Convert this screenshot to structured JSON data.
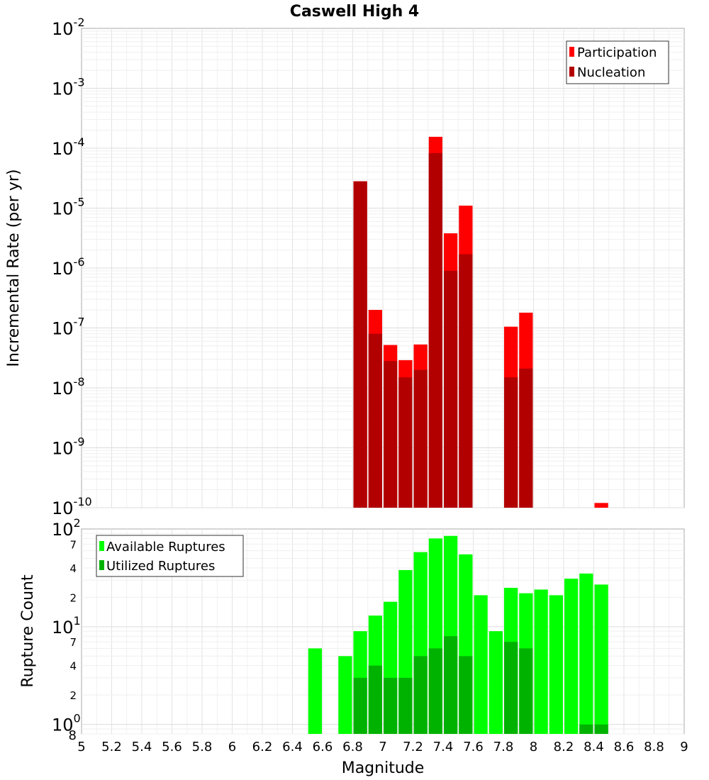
{
  "chart_data": [
    {
      "type": "bar",
      "title": "Caswell High 4",
      "xlabel": "",
      "ylabel": "Incremental Rate (per yr)",
      "yscale": "log",
      "ylim": [
        1e-10,
        0.01
      ],
      "xlim": [
        5,
        9
      ],
      "bin_width": 0.1,
      "grid": true,
      "legend_position": "top-right",
      "y_tick_labels": [
        {
          "base": "10",
          "exp": "-2"
        },
        {
          "base": "10",
          "exp": "-3"
        },
        {
          "base": "10",
          "exp": "-4"
        },
        {
          "base": "10",
          "exp": "-5"
        },
        {
          "base": "10",
          "exp": "-6"
        },
        {
          "base": "10",
          "exp": "-7"
        },
        {
          "base": "10",
          "exp": "-8"
        },
        {
          "base": "10",
          "exp": "-9"
        },
        {
          "base": "10",
          "exp": "-10"
        }
      ],
      "series": [
        {
          "name": "Participation",
          "color": "#ff0000",
          "x": [
            6.85,
            6.95,
            7.05,
            7.15,
            7.25,
            7.35,
            7.45,
            7.55,
            7.85,
            7.95,
            8.45
          ],
          "values": [
            2.8e-05,
            2e-07,
            5.2e-08,
            2.9e-08,
            5.3e-08,
            0.000155,
            3.8e-06,
            1.1e-05,
            1.05e-07,
            1.8e-07,
            1.2e-10
          ]
        },
        {
          "name": "Nucleation",
          "color": "#b20000",
          "x": [
            6.85,
            6.95,
            7.05,
            7.15,
            7.25,
            7.35,
            7.45,
            7.55,
            7.85,
            7.95
          ],
          "values": [
            2.8e-05,
            8e-08,
            2.8e-08,
            1.5e-08,
            2e-08,
            8.3e-05,
            9e-07,
            1.7e-06,
            1.5e-08,
            2.1e-08
          ]
        }
      ]
    },
    {
      "type": "bar",
      "title": "",
      "xlabel": "Magnitude",
      "ylabel": "Rupture Count",
      "yscale": "log",
      "ylim": [
        0.8,
        100
      ],
      "xlim": [
        5,
        9
      ],
      "bin_width": 0.1,
      "grid": true,
      "legend_position": "top-left",
      "x_ticks": [
        "5",
        "5.2",
        "5.4",
        "5.6",
        "5.8",
        "6",
        "6.2",
        "6.4",
        "6.6",
        "6.8",
        "7",
        "7.2",
        "7.4",
        "7.6",
        "7.8",
        "8",
        "8.2",
        "8.4",
        "8.6",
        "8.8",
        "9"
      ],
      "y_major_labels": [
        {
          "base": "10",
          "exp": "2"
        },
        {
          "base": "10",
          "exp": "1"
        },
        {
          "base": "10",
          "exp": "0"
        }
      ],
      "y_minor_labels": [
        "7",
        "4",
        "2",
        "7",
        "4",
        "2",
        "8"
      ],
      "series": [
        {
          "name": "Available Ruptures",
          "color": "#00ff00",
          "x": [
            6.55,
            6.75,
            6.85,
            6.95,
            7.05,
            7.15,
            7.25,
            7.35,
            7.45,
            7.55,
            7.65,
            7.75,
            7.85,
            7.95,
            8.05,
            8.15,
            8.25,
            8.35,
            8.45
          ],
          "values": [
            6,
            5,
            9,
            13,
            18,
            38,
            58,
            80,
            85,
            55,
            21,
            9,
            25,
            22,
            24,
            21,
            31,
            35,
            27
          ]
        },
        {
          "name": "Utilized Ruptures",
          "color": "#00b200",
          "x": [
            6.85,
            6.95,
            7.05,
            7.15,
            7.25,
            7.35,
            7.45,
            7.55,
            7.85,
            7.95,
            8.35,
            8.45
          ],
          "values": [
            3,
            4,
            3,
            3,
            5,
            6,
            8,
            5,
            7,
            6,
            1,
            1
          ]
        }
      ]
    }
  ]
}
